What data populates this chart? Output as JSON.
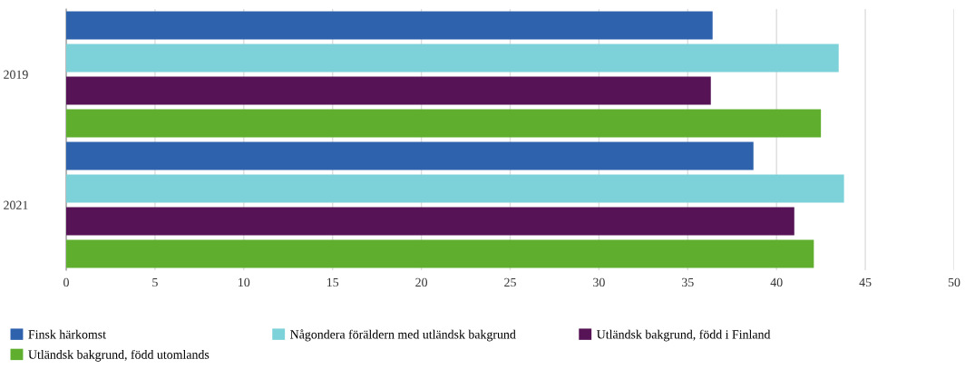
{
  "chart_data": {
    "type": "bar",
    "orientation": "horizontal",
    "categories": [
      "2019",
      "2021"
    ],
    "series": [
      {
        "name": "Finsk härkomst",
        "color": "#2e62ad",
        "values": [
          36.4,
          38.7
        ]
      },
      {
        "name": "Någondera föräldern med utländsk bakgrund",
        "color": "#7dd2d9",
        "values": [
          43.5,
          43.8
        ]
      },
      {
        "name": "Utländsk bakgrund, född i Finland",
        "color": "#561456",
        "values": [
          36.3,
          41.0
        ]
      },
      {
        "name": "Utländsk bakgrund, född utomlands",
        "color": "#5fae2e",
        "values": [
          42.5,
          42.1
        ]
      }
    ],
    "xlim": [
      0,
      50
    ],
    "xticks": [
      0,
      5,
      10,
      15,
      20,
      25,
      30,
      35,
      40,
      45,
      50
    ],
    "grid": "x",
    "legend": "bottom"
  }
}
